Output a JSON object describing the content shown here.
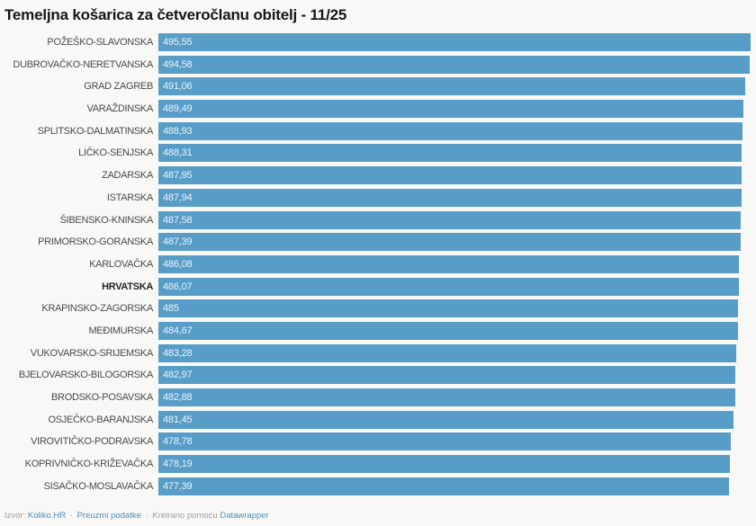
{
  "title": "Temeljna košarica za četveročlanu obitelj - 11/25",
  "colors": {
    "bar": "#579dc8",
    "bar_text": "#ebf4fa",
    "label": "#4a4a4a",
    "link": "#4a8fbf",
    "muted": "#9b9b9b",
    "background": "#f8f8f6",
    "title": "#161616"
  },
  "footer": {
    "source_label": "Izvor:",
    "source_link": "Koliko.HR",
    "separator": "·",
    "download_link": "Preuzmi podatke",
    "created_label": "Kreirano pomoću",
    "tool_link": "Datawrapper"
  },
  "chart_data": {
    "type": "bar",
    "orientation": "horizontal",
    "title": "Temeljna košarica za četveročlanu obitelj - 11/25",
    "xlabel": "",
    "ylabel": "",
    "xlim": [
      0,
      495.55
    ],
    "grid": false,
    "legend": false,
    "value_format": "comma-decimal",
    "rows": [
      {
        "label": "POŽEŠKO-SLAVONSKA",
        "value": 495.55,
        "display": "495,55",
        "bold": false
      },
      {
        "label": "DUBROVAČKO-NERETVANSKA",
        "value": 494.58,
        "display": "494,58",
        "bold": false
      },
      {
        "label": "GRAD ZAGREB",
        "value": 491.06,
        "display": "491,06",
        "bold": false
      },
      {
        "label": "VARAŽDINSKA",
        "value": 489.49,
        "display": "489,49",
        "bold": false
      },
      {
        "label": "SPLITSKO-DALMATINSKA",
        "value": 488.93,
        "display": "488,93",
        "bold": false
      },
      {
        "label": "LIČKO-SENJSKA",
        "value": 488.31,
        "display": "488,31",
        "bold": false
      },
      {
        "label": "ZADARSKA",
        "value": 487.95,
        "display": "487,95",
        "bold": false
      },
      {
        "label": "ISTARSKA",
        "value": 487.94,
        "display": "487,94",
        "bold": false
      },
      {
        "label": "ŠIBENSKO-KNINSKA",
        "value": 487.58,
        "display": "487,58",
        "bold": false
      },
      {
        "label": "PRIMORSKO-GORANSKA",
        "value": 487.39,
        "display": "487,39",
        "bold": false
      },
      {
        "label": "KARLOVAČKA",
        "value": 486.08,
        "display": "486,08",
        "bold": false
      },
      {
        "label": "HRVATSKA",
        "value": 486.07,
        "display": "486,07",
        "bold": true
      },
      {
        "label": "KRAPINSKO-ZAGORSKA",
        "value": 485,
        "display": "485",
        "bold": false
      },
      {
        "label": "MEĐIMURSKA",
        "value": 484.67,
        "display": "484,67",
        "bold": false
      },
      {
        "label": "VUKOVARSKO-SRIJEMSKA",
        "value": 483.28,
        "display": "483,28",
        "bold": false
      },
      {
        "label": "BJELOVARSKO-BILOGORSKA",
        "value": 482.97,
        "display": "482,97",
        "bold": false
      },
      {
        "label": "BRODSKO-POSAVSKA",
        "value": 482.88,
        "display": "482,88",
        "bold": false
      },
      {
        "label": "OSJEČKO-BARANJSKA",
        "value": 481.45,
        "display": "481,45",
        "bold": false
      },
      {
        "label": "VIROVITIČKO-PODRAVSKA",
        "value": 478.78,
        "display": "478,78",
        "bold": false
      },
      {
        "label": "KOPRIVNIČKO-KRIŽEVAČKA",
        "value": 478.19,
        "display": "478,19",
        "bold": false
      },
      {
        "label": "SISAČKO-MOSLAVAČKA",
        "value": 477.39,
        "display": "477,39",
        "bold": false
      }
    ]
  }
}
